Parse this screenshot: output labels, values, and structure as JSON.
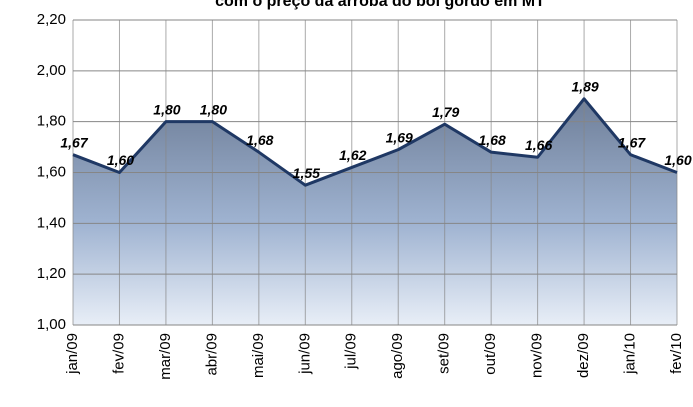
{
  "chart_data": {
    "type": "area",
    "title": "com o preço da arroba do boi gordo em MT",
    "categories": [
      "jan/09",
      "fev/09",
      "mar/09",
      "abr/09",
      "mai/09",
      "jun/09",
      "jul/09",
      "ago/09",
      "set/09",
      "out/09",
      "nov/09",
      "dez/09",
      "jan/10",
      "fev/10"
    ],
    "values": [
      1.67,
      1.6,
      1.8,
      1.8,
      1.68,
      1.55,
      1.62,
      1.69,
      1.79,
      1.68,
      1.66,
      1.89,
      1.67,
      1.6
    ],
    "value_labels": [
      "1,67",
      "1,60",
      "1,80",
      "1,80",
      "1,68",
      "1,55",
      "1,62",
      "1,69",
      "1,79",
      "1,68",
      "1,66",
      "1,89",
      "1,67",
      "1,60"
    ],
    "color": "#1f3864",
    "ylim": [
      1.0,
      2.2
    ],
    "yticks": [
      {
        "value": 1.0,
        "label": "1,00"
      },
      {
        "value": 1.2,
        "label": "1,20"
      },
      {
        "value": 1.4,
        "label": "1,40"
      },
      {
        "value": 1.6,
        "label": "1,60"
      },
      {
        "value": 1.8,
        "label": "1,80"
      },
      {
        "value": 2.0,
        "label": "2,00"
      },
      {
        "value": 2.2,
        "label": "2,20"
      }
    ],
    "grid": true
  }
}
